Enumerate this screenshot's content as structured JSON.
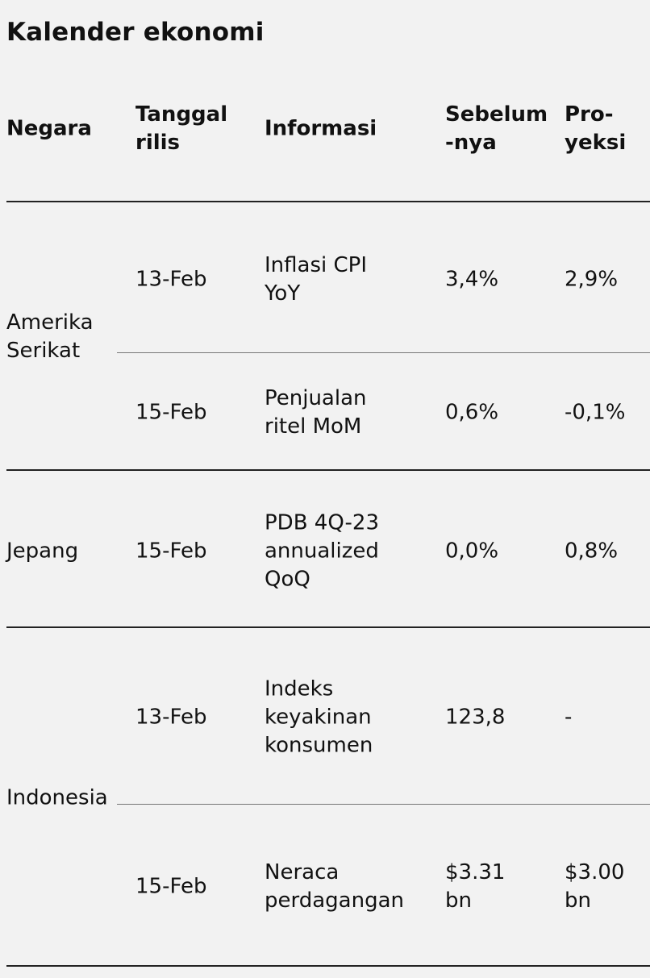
{
  "title": "Kalender ekonomi",
  "headers": {
    "country": "Negara",
    "date": "Tanggal\nrilis",
    "info": "Informasi",
    "prev": "Sebelum\n-nya",
    "proj": "Pro-\nyeksi"
  },
  "groups": [
    {
      "country": "Amerika\nSerikat",
      "rows": [
        {
          "date": "13-Feb",
          "info": "Inflasi CPI\nYoY",
          "prev": "3,4%",
          "proj": "2,9%"
        },
        {
          "date": "15-Feb",
          "info": "Penjualan\nritel MoM",
          "prev": "0,6%",
          "proj": "-0,1%"
        }
      ]
    },
    {
      "country": "Jepang",
      "rows": [
        {
          "date": "15-Feb",
          "info": "PDB 4Q-23\nannualized\nQoQ",
          "prev": "0,0%",
          "proj": "0,8%"
        }
      ]
    },
    {
      "country": "Indonesia",
      "rows": [
        {
          "date": "13-Feb",
          "info": "Indeks\nkeyakinan\nkonsumen",
          "prev": "123,8",
          "proj": "-"
        },
        {
          "date": "15-Feb",
          "info": "Neraca\nperdagangan",
          "prev": "$3.31\nbn",
          "proj": "$3.00\nbn"
        }
      ]
    }
  ]
}
